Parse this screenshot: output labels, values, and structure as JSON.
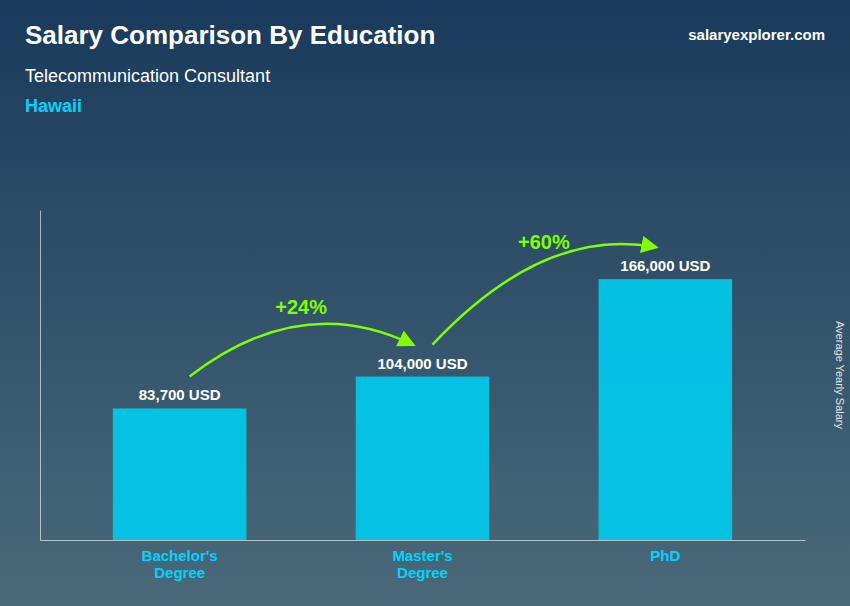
{
  "chart_data": {
    "type": "bar",
    "title": "Salary Comparison By Education",
    "subtitle": "Telecommunication Consultant",
    "annotations": [
      {
        "text": "Hawaii"
      },
      {
        "text": "salaryexplorer.com"
      },
      {
        "text": "+24%",
        "from": 0,
        "to": 1
      },
      {
        "text": "+60%",
        "from": 1,
        "to": 2
      }
    ],
    "ylabel": "Average Yearly Salary",
    "categories": [
      "Bachelor's\nDegree",
      "Master's\nDegree",
      "PhD"
    ],
    "values": [
      83700,
      104000,
      166000
    ],
    "value_labels": [
      "83,700 USD",
      "104,000 USD",
      "166,000 USD"
    ],
    "data_labels": true,
    "color": "#00ccee",
    "ylim": [
      0,
      210000
    ],
    "tick_labels": "x",
    "grid": false
  }
}
